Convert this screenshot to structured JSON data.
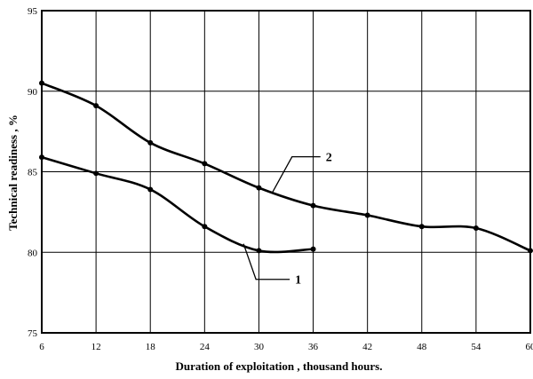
{
  "chart_data": {
    "type": "line",
    "xlabel": "Duration of exploitation , thousand hours.",
    "ylabel": "Technical readiness , %",
    "xlim": [
      6,
      60
    ],
    "ylim": [
      75,
      95
    ],
    "x_ticks": [
      "6",
      "12",
      "18",
      "24",
      "30",
      "36",
      "42",
      "48",
      "54",
      "60"
    ],
    "y_ticks": [
      "75",
      "80",
      "85",
      "90",
      "95"
    ],
    "grid": true,
    "line_color": "#000000",
    "series": [
      {
        "name": "1",
        "x": [
          6,
          12,
          18,
          24,
          30,
          36
        ],
        "y": [
          85.9,
          84.9,
          83.9,
          81.6,
          80.1,
          80.2
        ]
      },
      {
        "name": "2",
        "x": [
          6,
          12,
          18,
          24,
          30,
          36,
          42,
          48,
          54,
          60
        ],
        "y": [
          90.5,
          89.1,
          86.8,
          85.5,
          84.0,
          82.9,
          82.3,
          81.6,
          81.5,
          80.1
        ]
      }
    ]
  }
}
